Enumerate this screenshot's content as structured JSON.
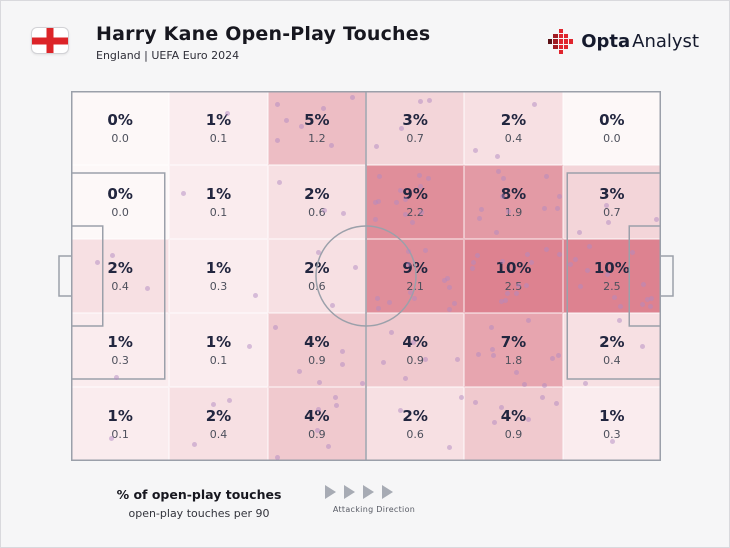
{
  "header": {
    "title": "Harry Kane Open-Play Touches",
    "subtitle": "England | UEFA Euro 2024"
  },
  "brand": {
    "name_bold": "Opta",
    "name_light": "Analyst"
  },
  "legend": {
    "primary": "% of open-play touches",
    "secondary": "open-play touches per 90",
    "attacking": "Attacking Direction",
    "arrow_count": 4
  },
  "icons": {
    "england_flag": "red-cross-on-white-rounded-rect",
    "opta_logo": "red-pixel-diamond",
    "attacking_arrow": "right-pointing-triangle"
  },
  "colors": {
    "heat_min": "#fdf8f8",
    "heat_max": "#dd8290",
    "dot": "#b18ac2",
    "pitch_line": "#9ba0aa",
    "flag_cross_red": "#dc2428",
    "brand_red": "#e0252e",
    "brand_red_dark": "#a01b22",
    "brand_red_deep": "#5c1115",
    "text_dark": "#17171f",
    "page_bg": "#f6f6f7"
  },
  "chart_data": {
    "type": "heatmap",
    "title": "Harry Kane Open-Play Touches",
    "subtitle": "England | UEFA Euro 2024",
    "rows": 5,
    "cols": 6,
    "orientation": "pitch-left-to-right",
    "attacking_direction": "left-to-right",
    "unit_primary": "% of open-play touches",
    "unit_secondary": "open-play touches per 90",
    "max_pct": 10,
    "grid_pct": [
      [
        0,
        1,
        5,
        3,
        2,
        0
      ],
      [
        0,
        1,
        2,
        9,
        8,
        3
      ],
      [
        2,
        1,
        2,
        9,
        10,
        10
      ],
      [
        1,
        1,
        4,
        4,
        7,
        2
      ],
      [
        1,
        2,
        4,
        2,
        4,
        1
      ]
    ],
    "grid_per90": [
      [
        "0.0",
        "0.1",
        "1.2",
        "0.7",
        "0.4",
        "0.0"
      ],
      [
        "0.0",
        "0.1",
        "0.6",
        "2.2",
        "1.9",
        "0.7"
      ],
      [
        "0.4",
        "0.3",
        "0.6",
        "2.1",
        "2.5",
        "2.5"
      ],
      [
        "0.3",
        "0.1",
        "0.9",
        "0.9",
        "1.8",
        "0.4"
      ],
      [
        "0.1",
        "0.4",
        "0.9",
        "0.6",
        "0.9",
        "0.3"
      ]
    ]
  }
}
